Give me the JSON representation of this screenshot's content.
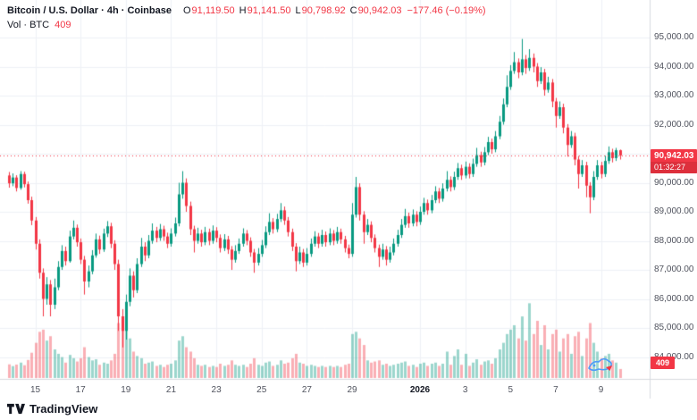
{
  "header": {
    "title": "Bitcoin / U.S. Dollar · 4h · Coinbase",
    "ohlc": {
      "o_label": "O",
      "o": "91,119.50",
      "h_label": "H",
      "h": "91,141.50",
      "l_label": "L",
      "l": "90,798.92",
      "c_label": "C",
      "c": "90,942.03"
    },
    "change": "−177.46 (−0.19%)",
    "volume_label": "Vol · BTC",
    "volume_value": "409"
  },
  "price_badge": {
    "price": "90,942.03",
    "countdown": "01:32:27"
  },
  "volume_badge": "409",
  "price_axis": {
    "items": [
      {
        "text": "95,000.00",
        "value": 95000
      },
      {
        "text": "94,000.00",
        "value": 94000
      },
      {
        "text": "93,000.00",
        "value": 93000
      },
      {
        "text": "92,000.00",
        "value": 92000
      },
      {
        "text": "91,000.00",
        "value": 91000
      },
      {
        "text": "90,000.00",
        "value": 90000
      },
      {
        "text": "89,000.00",
        "value": 89000
      },
      {
        "text": "88,000.00",
        "value": 88000
      },
      {
        "text": "87,000.00",
        "value": 87000
      },
      {
        "text": "86,000.00",
        "value": 86000
      },
      {
        "text": "85,000.00",
        "value": 85000
      },
      {
        "text": "84,000.00",
        "value": 84000
      }
    ]
  },
  "time_axis": {
    "items": [
      {
        "text": "15",
        "bar": 7
      },
      {
        "text": "17",
        "bar": 19
      },
      {
        "text": "19",
        "bar": 31
      },
      {
        "text": "21",
        "bar": 43
      },
      {
        "text": "23",
        "bar": 55
      },
      {
        "text": "25",
        "bar": 67
      },
      {
        "text": "27",
        "bar": 79
      },
      {
        "text": "29",
        "bar": 91
      },
      {
        "text": "2026",
        "bar": 109,
        "strong": true
      },
      {
        "text": "3",
        "bar": 121
      },
      {
        "text": "5",
        "bar": 133
      },
      {
        "text": "7",
        "bar": 145
      },
      {
        "text": "9",
        "bar": 157
      }
    ]
  },
  "footer": {
    "brand": "TradingView"
  },
  "colors": {
    "up": "#089981",
    "down": "#F23645",
    "grid": "#eef1f6",
    "axis_border": "#d7dae0",
    "text": "#131722",
    "muted": "#50535e",
    "badge": "#F23645"
  },
  "chart_data": {
    "type": "candlestick",
    "title": "Bitcoin / U.S. Dollar",
    "exchange": "Coinbase",
    "interval": "4h",
    "last": {
      "open": 91119.5,
      "high": 91141.5,
      "low": 90798.92,
      "close": 90942.03,
      "change": -177.46,
      "change_pct": -0.19,
      "volume_btc": 409
    },
    "price_line": {
      "value": 90942.03,
      "style": "dotted",
      "color": "#F23645"
    },
    "y_axis": {
      "min": 84000,
      "max": 95000,
      "step": 1000
    },
    "x_labels": [
      "15",
      "17",
      "19",
      "21",
      "23",
      "25",
      "27",
      "29",
      "2026",
      "3",
      "5",
      "7",
      "9"
    ],
    "candles": [
      [
        90250,
        90370,
        89830,
        89980,
        620
      ],
      [
        89980,
        90320,
        89880,
        90180,
        540
      ],
      [
        90180,
        90260,
        89700,
        89820,
        610
      ],
      [
        89820,
        90400,
        89760,
        90300,
        700
      ],
      [
        90300,
        90380,
        89840,
        89950,
        580
      ],
      [
        89950,
        90040,
        89280,
        89400,
        820
      ],
      [
        89400,
        89520,
        88540,
        88700,
        1150
      ],
      [
        88700,
        88820,
        87700,
        87900,
        1600
      ],
      [
        87900,
        88050,
        86700,
        86900,
        2100
      ],
      [
        86900,
        87050,
        85400,
        86000,
        2200
      ],
      [
        86000,
        86750,
        85800,
        86500,
        1700
      ],
      [
        86500,
        86650,
        85400,
        85800,
        1900
      ],
      [
        85800,
        86700,
        85650,
        86400,
        1300
      ],
      [
        86400,
        87300,
        86300,
        87100,
        1100
      ],
      [
        87100,
        87850,
        87000,
        87650,
        950
      ],
      [
        87650,
        87800,
        87150,
        87300,
        700
      ],
      [
        87300,
        88350,
        87250,
        88150,
        1050
      ],
      [
        88150,
        88700,
        88050,
        88450,
        900
      ],
      [
        88450,
        88560,
        87800,
        87950,
        750
      ],
      [
        87950,
        88080,
        87200,
        87350,
        900
      ],
      [
        87350,
        87480,
        86150,
        86600,
        1400
      ],
      [
        86600,
        87150,
        86400,
        86950,
        950
      ],
      [
        86950,
        87680,
        86850,
        87500,
        800
      ],
      [
        87500,
        88250,
        87420,
        88050,
        850
      ],
      [
        88050,
        88180,
        87550,
        87700,
        600
      ],
      [
        87700,
        88420,
        87620,
        88250,
        700
      ],
      [
        88250,
        88680,
        88130,
        88500,
        650
      ],
      [
        88500,
        88620,
        87750,
        87900,
        800
      ],
      [
        87900,
        88020,
        87000,
        87200,
        1100
      ],
      [
        87200,
        87350,
        84900,
        85400,
        2500
      ],
      [
        85400,
        85650,
        84330,
        84900,
        2700
      ],
      [
        84900,
        86150,
        84600,
        85900,
        2300
      ],
      [
        85900,
        87050,
        85750,
        86800,
        1800
      ],
      [
        86800,
        86950,
        86050,
        86300,
        1200
      ],
      [
        86300,
        87400,
        86200,
        87200,
        1000
      ],
      [
        87200,
        88100,
        87100,
        87800,
        900
      ],
      [
        87800,
        87950,
        87300,
        87500,
        650
      ],
      [
        87500,
        88200,
        87400,
        88000,
        700
      ],
      [
        88000,
        88600,
        87900,
        88350,
        750
      ],
      [
        88350,
        88480,
        87950,
        88100,
        550
      ],
      [
        88100,
        88580,
        88000,
        88400,
        600
      ],
      [
        88400,
        88520,
        88000,
        88150,
        500
      ],
      [
        88150,
        88280,
        87750,
        87900,
        600
      ],
      [
        87900,
        88430,
        87800,
        88250,
        650
      ],
      [
        88250,
        88800,
        88150,
        88600,
        800
      ],
      [
        88600,
        90000,
        88500,
        89600,
        1700
      ],
      [
        89600,
        90400,
        89450,
        90000,
        1900
      ],
      [
        90000,
        90150,
        89000,
        89200,
        1400
      ],
      [
        89200,
        89350,
        88200,
        88400,
        1200
      ],
      [
        88400,
        88520,
        87600,
        88000,
        900
      ],
      [
        88000,
        88450,
        87900,
        88250,
        600
      ],
      [
        88250,
        88380,
        87800,
        87950,
        550
      ],
      [
        87950,
        88480,
        87850,
        88300,
        600
      ],
      [
        88300,
        88420,
        87850,
        88000,
        500
      ],
      [
        88000,
        88530,
        87900,
        88350,
        550
      ],
      [
        88350,
        88470,
        87950,
        88100,
        500
      ],
      [
        88100,
        88220,
        87600,
        87750,
        650
      ],
      [
        87750,
        88230,
        87650,
        88050,
        550
      ],
      [
        88050,
        88170,
        87550,
        87700,
        600
      ],
      [
        87700,
        87820,
        87000,
        87350,
        800
      ],
      [
        87350,
        87850,
        87250,
        87650,
        600
      ],
      [
        87650,
        88080,
        87550,
        87900,
        550
      ],
      [
        87900,
        88430,
        87800,
        88250,
        600
      ],
      [
        88250,
        88370,
        87850,
        88000,
        500
      ],
      [
        88000,
        88120,
        87450,
        87600,
        650
      ],
      [
        87600,
        87720,
        86900,
        87250,
        900
      ],
      [
        87250,
        87750,
        87150,
        87550,
        600
      ],
      [
        87550,
        88030,
        87450,
        87850,
        550
      ],
      [
        87850,
        88500,
        87750,
        88300,
        700
      ],
      [
        88300,
        88950,
        88200,
        88650,
        750
      ],
      [
        88650,
        88780,
        88250,
        88400,
        550
      ],
      [
        88400,
        88930,
        88300,
        88750,
        600
      ],
      [
        88750,
        89300,
        88650,
        89050,
        800
      ],
      [
        89050,
        89180,
        88550,
        88700,
        650
      ],
      [
        88700,
        88820,
        88150,
        88300,
        700
      ],
      [
        88300,
        88420,
        87650,
        87800,
        900
      ],
      [
        87800,
        87920,
        86950,
        87300,
        1100
      ],
      [
        87300,
        87800,
        87200,
        87600,
        700
      ],
      [
        87600,
        87720,
        87100,
        87250,
        650
      ],
      [
        87250,
        87750,
        87150,
        87550,
        550
      ],
      [
        87550,
        88080,
        87450,
        87900,
        600
      ],
      [
        87900,
        88330,
        87800,
        88150,
        550
      ],
      [
        88150,
        88270,
        87750,
        87900,
        500
      ],
      [
        87900,
        88380,
        87800,
        88200,
        550
      ],
      [
        88200,
        88320,
        87800,
        87950,
        500
      ],
      [
        87950,
        88430,
        87850,
        88250,
        550
      ],
      [
        88250,
        88370,
        87850,
        88000,
        500
      ],
      [
        88000,
        88480,
        87900,
        88300,
        550
      ],
      [
        88300,
        88420,
        87900,
        88050,
        500
      ],
      [
        88050,
        88170,
        87600,
        87750,
        600
      ],
      [
        87750,
        87870,
        87400,
        87550,
        650
      ],
      [
        87550,
        89300,
        87450,
        88900,
        2000
      ],
      [
        88900,
        90200,
        88800,
        89850,
        2100
      ],
      [
        89850,
        89980,
        88700,
        88900,
        1800
      ],
      [
        88900,
        89020,
        87900,
        88300,
        1500
      ],
      [
        88300,
        88750,
        88200,
        88550,
        800
      ],
      [
        88550,
        88670,
        87950,
        88100,
        700
      ],
      [
        88100,
        88220,
        87600,
        87750,
        750
      ],
      [
        87750,
        87870,
        87100,
        87450,
        800
      ],
      [
        87450,
        87900,
        87350,
        87700,
        600
      ],
      [
        87700,
        87820,
        87150,
        87350,
        650
      ],
      [
        87350,
        87800,
        87250,
        87600,
        550
      ],
      [
        87600,
        88080,
        87500,
        87900,
        600
      ],
      [
        87900,
        88380,
        87800,
        88200,
        650
      ],
      [
        88200,
        88750,
        88100,
        88550,
        700
      ],
      [
        88550,
        89100,
        88450,
        88850,
        750
      ],
      [
        88850,
        88970,
        88450,
        88600,
        550
      ],
      [
        88600,
        89080,
        88500,
        88900,
        600
      ],
      [
        88900,
        89020,
        88500,
        88650,
        500
      ],
      [
        88650,
        89180,
        88550,
        89000,
        650
      ],
      [
        89000,
        89480,
        88900,
        89300,
        700
      ],
      [
        89300,
        89420,
        88900,
        89050,
        550
      ],
      [
        89050,
        89580,
        88950,
        89400,
        650
      ],
      [
        89400,
        89880,
        89300,
        89700,
        700
      ],
      [
        89700,
        89820,
        89300,
        89450,
        550
      ],
      [
        89450,
        89980,
        89350,
        89800,
        650
      ],
      [
        89800,
        90400,
        89700,
        90100,
        1200
      ],
      [
        90100,
        90220,
        89700,
        89850,
        600
      ],
      [
        89850,
        90380,
        89750,
        90200,
        1000
      ],
      [
        90200,
        90680,
        90100,
        90500,
        1300
      ],
      [
        90500,
        90620,
        90100,
        90250,
        600
      ],
      [
        90250,
        90730,
        90150,
        90550,
        1100
      ],
      [
        90550,
        90670,
        90150,
        90300,
        550
      ],
      [
        90300,
        90830,
        90200,
        90650,
        700
      ],
      [
        90650,
        91200,
        90550,
        90950,
        850
      ],
      [
        90950,
        91070,
        90550,
        90700,
        600
      ],
      [
        90700,
        91230,
        90600,
        91050,
        750
      ],
      [
        91050,
        91580,
        90950,
        91400,
        800
      ],
      [
        91400,
        91520,
        91000,
        91150,
        650
      ],
      [
        91150,
        91780,
        91050,
        91600,
        900
      ],
      [
        91600,
        92300,
        91500,
        92100,
        1300
      ],
      [
        92100,
        92900,
        92000,
        92700,
        1600
      ],
      [
        92700,
        93700,
        92600,
        93300,
        2000
      ],
      [
        93300,
        94050,
        93200,
        93850,
        2200
      ],
      [
        93850,
        94500,
        93750,
        94150,
        2400
      ],
      [
        94150,
        94280,
        93600,
        93800,
        1800
      ],
      [
        93800,
        94950,
        93700,
        94250,
        2800
      ],
      [
        94250,
        94400,
        93750,
        93950,
        1700
      ],
      [
        93950,
        94600,
        93850,
        94300,
        3400
      ],
      [
        94300,
        94450,
        93800,
        94000,
        2000
      ],
      [
        94000,
        94120,
        93300,
        93500,
        2600
      ],
      [
        93500,
        93980,
        93400,
        93800,
        1500
      ],
      [
        93800,
        93920,
        93000,
        93200,
        2400
      ],
      [
        93200,
        93650,
        93100,
        93450,
        1300
      ],
      [
        93450,
        93570,
        92600,
        92800,
        2000
      ],
      [
        92800,
        92920,
        91900,
        92300,
        2200
      ],
      [
        92300,
        92800,
        92200,
        92600,
        1200
      ],
      [
        92600,
        92720,
        91700,
        91900,
        1800
      ],
      [
        91900,
        92020,
        90900,
        91300,
        2000
      ],
      [
        91300,
        91780,
        91200,
        91600,
        1100
      ],
      [
        91600,
        91720,
        90600,
        90800,
        1900
      ],
      [
        90800,
        90920,
        89800,
        90300,
        2100
      ],
      [
        90300,
        90780,
        90200,
        90600,
        1000
      ],
      [
        90600,
        90720,
        89500,
        89900,
        1800
      ],
      [
        89900,
        90020,
        88950,
        89500,
        2500
      ],
      [
        89500,
        90400,
        89400,
        90200,
        1600
      ],
      [
        90200,
        90780,
        90100,
        90600,
        1200
      ],
      [
        90600,
        90720,
        90150,
        90300,
        900
      ],
      [
        90300,
        90930,
        90200,
        90750,
        1000
      ],
      [
        90750,
        91250,
        90650,
        91050,
        1100
      ],
      [
        91050,
        91170,
        90700,
        90850,
        800
      ],
      [
        90850,
        91200,
        90750,
        91120,
        700
      ],
      [
        91119.5,
        91141.5,
        90798.92,
        90942.03,
        409
      ]
    ]
  }
}
